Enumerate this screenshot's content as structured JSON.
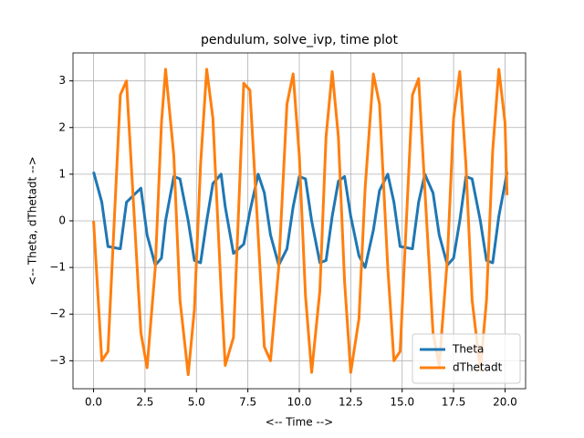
{
  "chart_data": {
    "type": "line",
    "title": "pendulum, solve_ivp, time plot",
    "xlabel": "<-- Time -->",
    "ylabel": "<-- Theta, dThetadt -->",
    "x": [
      0.0,
      0.4,
      0.7,
      1.3,
      1.6,
      2.3,
      2.6,
      3.0,
      3.3,
      3.5,
      3.9,
      4.2,
      4.6,
      4.9,
      5.2,
      5.5,
      5.8,
      6.2,
      6.4,
      6.8,
      7.3,
      7.6,
      8.0,
      8.3,
      8.6,
      9.0,
      9.4,
      9.7,
      10.0,
      10.3,
      10.6,
      11.0,
      11.3,
      11.6,
      11.9,
      12.2,
      12.5,
      12.9,
      13.2,
      13.6,
      13.9,
      14.3,
      14.6,
      14.9,
      15.5,
      15.8,
      16.1,
      16.5,
      16.8,
      17.2,
      17.5,
      17.8,
      18.1,
      18.4,
      18.8,
      19.1,
      19.4,
      19.7,
      20.0,
      20.1
    ],
    "series": [
      {
        "name": "Theta",
        "color": "#1f77b4",
        "values": [
          1.05,
          0.4,
          -0.55,
          -0.6,
          0.4,
          0.7,
          -0.3,
          -0.95,
          -0.8,
          0.0,
          0.95,
          0.9,
          0.0,
          -0.85,
          -0.9,
          0.0,
          0.8,
          1.0,
          0.3,
          -0.7,
          -0.5,
          0.2,
          1.0,
          0.6,
          -0.3,
          -0.95,
          -0.6,
          0.3,
          0.95,
          0.9,
          0.0,
          -0.9,
          -0.85,
          0.1,
          0.85,
          0.95,
          0.1,
          -0.75,
          -1.0,
          -0.2,
          0.65,
          1.0,
          0.4,
          -0.55,
          -0.6,
          0.4,
          1.0,
          0.6,
          -0.3,
          -0.95,
          -0.8,
          0.0,
          0.95,
          0.9,
          0.0,
          -0.85,
          -0.9,
          0.1,
          0.8,
          1.05
        ]
      },
      {
        "name": "dThetadt",
        "color": "#ff7f0e",
        "values": [
          0.0,
          -3.0,
          -2.8,
          2.7,
          3.0,
          -2.4,
          -3.15,
          -1.0,
          2.1,
          3.25,
          1.4,
          -1.7,
          -3.3,
          -1.9,
          1.2,
          3.25,
          2.2,
          -1.5,
          -3.1,
          -2.5,
          2.95,
          2.8,
          -0.3,
          -2.7,
          -3.0,
          -1.0,
          2.5,
          3.15,
          1.4,
          -1.6,
          -3.25,
          -1.5,
          1.8,
          3.2,
          1.8,
          -1.3,
          -3.25,
          -2.1,
          0.7,
          3.15,
          2.5,
          -1.0,
          -3.0,
          -2.8,
          2.7,
          3.05,
          0.7,
          -2.4,
          -3.1,
          -0.8,
          2.2,
          3.2,
          1.2,
          -1.7,
          -3.2,
          -1.7,
          1.5,
          3.25,
          2.1,
          0.55
        ]
      }
    ],
    "xlim": [
      -1,
      21
    ],
    "ylim": [
      -3.6,
      3.6
    ],
    "xticks": [
      {
        "value": 0,
        "label": "0.0"
      },
      {
        "value": 2.5,
        "label": "2.5"
      },
      {
        "value": 5,
        "label": "5.0"
      },
      {
        "value": 7.5,
        "label": "7.5"
      },
      {
        "value": 10,
        "label": "10.0"
      },
      {
        "value": 12.5,
        "label": "12.5"
      },
      {
        "value": 15,
        "label": "15.0"
      },
      {
        "value": 17.5,
        "label": "17.5"
      },
      {
        "value": 20,
        "label": "20.0"
      }
    ],
    "yticks": [
      {
        "value": -3,
        "label": "−3"
      },
      {
        "value": -2,
        "label": "−2"
      },
      {
        "value": -1,
        "label": "−1"
      },
      0,
      1,
      2,
      3
    ],
    "grid": true,
    "legend": "lower right"
  }
}
